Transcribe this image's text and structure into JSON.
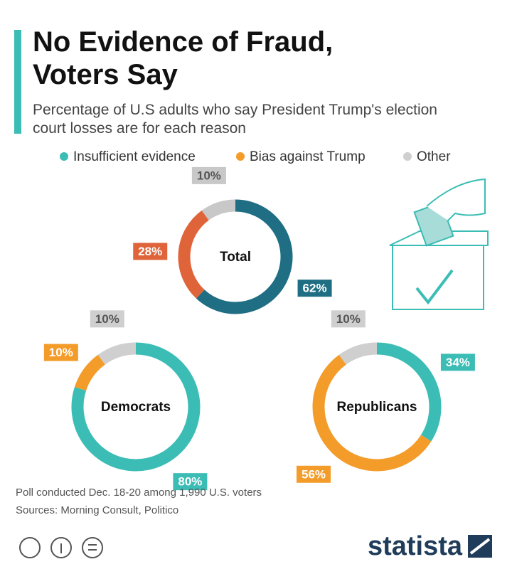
{
  "header": {
    "title": "No Evidence of Fraud, Voters Say",
    "subtitle": "Percentage of U.S adults who say President Trump's election court losses are for each reason"
  },
  "legend": {
    "labels": [
      "Insufficient evidence",
      "Bias against Trump",
      "Other"
    ],
    "colors": [
      "#3bbdb5",
      "#f39c2a",
      "#cfcfcf"
    ]
  },
  "chart_data": [
    {
      "type": "donut",
      "title": "Total",
      "values": [
        62,
        28,
        10
      ],
      "value_labels": [
        "62%",
        "28%",
        "10%"
      ],
      "colors": [
        "#1f6e83",
        "#e0643a",
        "#c8c8c8"
      ]
    },
    {
      "type": "donut",
      "title": "Democrats",
      "values": [
        80,
        10,
        10
      ],
      "value_labels": [
        "80%",
        "10%",
        "10%"
      ],
      "colors": [
        "#3bbdb5",
        "#f39c2a",
        "#cfcfcf"
      ]
    },
    {
      "type": "donut",
      "title": "Republicans",
      "values": [
        34,
        56,
        10
      ],
      "value_labels": [
        "34%",
        "56%",
        "10%"
      ],
      "colors": [
        "#3bbdb5",
        "#f39c2a",
        "#cfcfcf"
      ]
    }
  ],
  "footer": {
    "notes": [
      "Poll conducted Dec. 18-20 among 1,990 U.S. voters",
      "Sources: Morning Consult, Politico"
    ],
    "brand": "statista"
  }
}
